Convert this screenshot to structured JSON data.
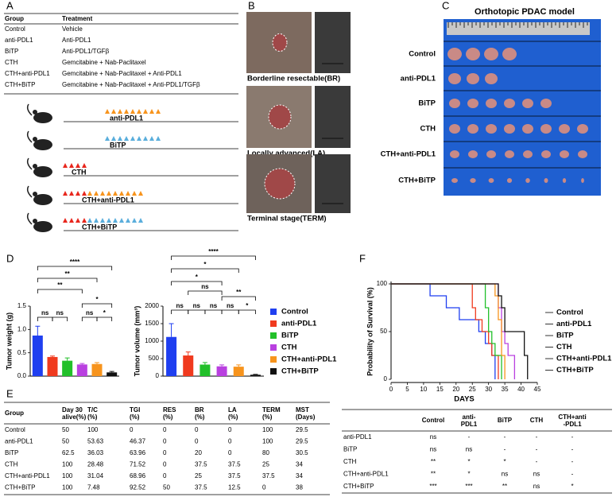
{
  "panel_labels": [
    "A",
    "B",
    "C",
    "D",
    "E",
    "F"
  ],
  "table_a": {
    "header": [
      "Group",
      "Treatment"
    ],
    "rows": [
      [
        "Control",
        "Vehicle"
      ],
      [
        "anti-PDL1",
        "Anti-PDL1"
      ],
      [
        "BiTP",
        "Anti-PDL1/TGFβ"
      ],
      [
        "CTH",
        "Gemcitabine + Nab-Paclitaxel"
      ],
      [
        "CTH+anti-PDL1",
        "Gemcitabine + Nab-Paclitaxel + Anti-PDL1"
      ],
      [
        "CTH+BiTP",
        "Gemcitabine + Nab-Paclitaxel + Anti-PDL1/TGFβ"
      ]
    ]
  },
  "schematic": [
    "anti-PDL1",
    "BiTP",
    "CTH",
    "CTH+anti-PDL1",
    "CTH+BiTP"
  ],
  "panel_b": [
    "Borderline resectable(BR)",
    "Locally advanced(LA)",
    "Terminal stage(TERM)"
  ],
  "panel_c": {
    "title": "Orthotopic PDAC model",
    "rows": [
      "Control",
      "anti-PDL1",
      "BiTP",
      "CTH",
      "CTH+anti-PDL1",
      "CTH+BiTP"
    ]
  },
  "chart_data": [
    {
      "type": "bar",
      "ylabel": "Tumor weight (g)",
      "categories": [
        "Control",
        "anti-PDL1",
        "BiTP",
        "CTH",
        "CTH+anti-PDL1",
        "CTH+BiTP"
      ],
      "colors": [
        "#1f3ff0",
        "#f03a1e",
        "#22c02a",
        "#b940e0",
        "#f7941d",
        "#111111"
      ],
      "values": [
        0.87,
        0.41,
        0.33,
        0.25,
        0.26,
        0.08
      ],
      "errors": [
        0.2,
        0.02,
        0.06,
        0.02,
        0.03,
        0.02
      ],
      "ylim": [
        0,
        1.5
      ],
      "yticks": [
        {
          "value": 0,
          "label": "0.0"
        },
        {
          "value": 0.5,
          "label": "0.5"
        },
        {
          "value": 1,
          "label": "1.0"
        },
        {
          "value": 1.5,
          "label": "1.5"
        }
      ],
      "significance": [
        "****",
        "**",
        "**",
        "*",
        "ns",
        "ns",
        "ns",
        "*"
      ]
    },
    {
      "type": "bar",
      "ylabel": "Tumor volume (mm³)",
      "values": [
        1120,
        590,
        330,
        280,
        270,
        40
      ],
      "errors": [
        380,
        100,
        60,
        40,
        50,
        10
      ],
      "ylim": [
        0,
        2000
      ],
      "yticks": [
        0,
        500,
        1000,
        1500,
        2000
      ],
      "significance": [
        "****",
        "*",
        "*",
        "**",
        "ns",
        "ns",
        "ns",
        "ns",
        "ns",
        "*"
      ]
    },
    {
      "type": "line",
      "xlabel": "DAYS",
      "ylabel": "Probability of Survival (%)",
      "xlim": [
        0,
        45
      ],
      "xticks": [
        0,
        5,
        10,
        15,
        20,
        25,
        30,
        35,
        40,
        45
      ],
      "ylim": [
        0,
        100
      ],
      "yticks": [
        0,
        50,
        100
      ],
      "series": [
        {
          "name": "Control",
          "color": "#1f3ff0",
          "x": [
            0,
            12,
            17,
            21,
            27,
            29,
            31,
            32
          ],
          "values": [
            100,
            87.5,
            75,
            62.5,
            50,
            37.5,
            25,
            0
          ]
        },
        {
          "name": "anti-PDL1",
          "color": "#f03a1e",
          "x": [
            0,
            25,
            26,
            28,
            30,
            31,
            33
          ],
          "values": [
            100,
            75,
            62.5,
            50,
            37.5,
            25,
            0
          ]
        },
        {
          "name": "BiTP",
          "color": "#22c02a",
          "x": [
            0,
            29,
            30,
            31,
            32,
            34
          ],
          "values": [
            100,
            75,
            50,
            37.5,
            25,
            0
          ]
        },
        {
          "name": "CTH",
          "color": "#b940e0",
          "x": [
            0,
            33,
            34,
            35,
            36,
            38
          ],
          "values": [
            100,
            75,
            50,
            37.5,
            25,
            0
          ]
        },
        {
          "name": "CTH+anti-PDL1",
          "color": "#f7941d",
          "x": [
            0,
            32,
            33,
            34,
            35
          ],
          "values": [
            100,
            87.5,
            62.5,
            25,
            0
          ]
        },
        {
          "name": "CTH+BiTP",
          "color": "#111111",
          "x": [
            0,
            33,
            34,
            35,
            41,
            42
          ],
          "values": [
            100,
            87.5,
            75,
            50,
            25,
            0
          ]
        }
      ]
    }
  ],
  "table_e": {
    "header": [
      "Group",
      "Day 30 alive(%)",
      "T/C (%)",
      "TGI (%)",
      "RES (%)",
      "BR (%)",
      "LA (%)",
      "TERM (%)",
      "MST (Days)"
    ],
    "rows": [
      [
        "Control",
        "50",
        "100",
        "0",
        "0",
        "0",
        "0",
        "100",
        "29.5"
      ],
      [
        "anti-PDL1",
        "50",
        "53.63",
        "46.37",
        "0",
        "0",
        "0",
        "100",
        "29.5"
      ],
      [
        "BiTP",
        "62.5",
        "36.03",
        "63.96",
        "0",
        "20",
        "0",
        "80",
        "30.5"
      ],
      [
        "CTH",
        "100",
        "28.48",
        "71.52",
        "0",
        "37.5",
        "37.5",
        "25",
        "34"
      ],
      [
        "CTH+anti-PDL1",
        "100",
        "31.04",
        "68.96",
        "0",
        "25",
        "37.5",
        "37.5",
        "34"
      ],
      [
        "CTH+BiTP",
        "100",
        "7.48",
        "92.52",
        "50",
        "37.5",
        "12.5",
        "0",
        "38"
      ]
    ]
  },
  "table_f": {
    "header": [
      "Control",
      "anti-PDL1",
      "BiTP",
      "CTH",
      "CTH+anti -PDL1"
    ],
    "rows": [
      [
        "anti-PDL1",
        "ns",
        "-",
        "-",
        "-",
        "-"
      ],
      [
        "BiTP",
        "ns",
        "ns",
        "-",
        "-",
        "-"
      ],
      [
        "CTH",
        "**",
        "*",
        "*",
        "-",
        "-"
      ],
      [
        "CTH+anti-PDL1",
        "**",
        "*",
        "ns",
        "ns",
        "-"
      ],
      [
        "CTH+BiTP",
        "***",
        "***",
        "**",
        "ns",
        "*"
      ]
    ]
  }
}
